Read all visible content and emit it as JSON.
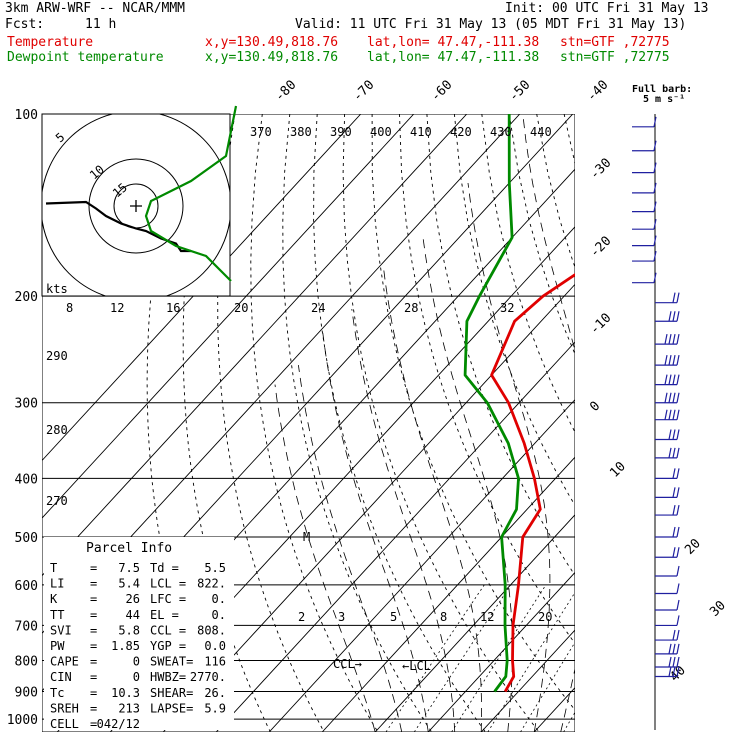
{
  "header": {
    "title_left": "3km ARW-WRF -- NCAR/MMM",
    "init": "Init: 00 UTC Fri 31 May 13",
    "fcst_label": "Fcst:",
    "fcst_value": "11 h",
    "valid": "Valid: 11 UTC Fri 31 May 13 (05 MDT Fri 31 May 13)",
    "series": [
      {
        "name": "Temperature",
        "coords": "x,y=130.49,818.76",
        "latlon": "lat,lon= 47.47,-111.38",
        "stn": "stn=GTF ,72775",
        "color": "#e00000"
      },
      {
        "name": "Dewpoint temperature",
        "coords": "x,y=130.49,818.76",
        "latlon": "lat,lon= 47.47,-111.38",
        "stn": "stn=GTF ,72775",
        "color": "#008a00"
      }
    ]
  },
  "barb_legend": {
    "line1": "Full barb:",
    "line2": "5 m s⁻¹"
  },
  "hodograph": {
    "unit": "kts",
    "rings": [
      "5",
      "10",
      "15"
    ]
  },
  "parcel_info": {
    "title": "Parcel Info",
    "rows": [
      [
        "T",
        "=",
        "7.5",
        "Td =",
        "5.5"
      ],
      [
        "LI",
        "=",
        "5.4",
        "LCL =",
        "822."
      ],
      [
        "K",
        "=",
        "26",
        "LFC =",
        "0."
      ],
      [
        "TT",
        "=",
        "44",
        "EL =",
        "0."
      ],
      [
        "SVI",
        "=",
        "5.8",
        "CCL =",
        "808."
      ],
      [
        "PW",
        "=",
        "1.85",
        "YGP =",
        "0.0"
      ],
      [
        "CAPE",
        "=",
        "0",
        "SWEAT=",
        "116"
      ],
      [
        "CIN",
        "=",
        "0",
        "HWBZ=",
        "2770."
      ],
      [
        "Tc",
        "=",
        "10.3",
        "SHEAR=",
        "26."
      ],
      [
        "SREH",
        "=",
        "213",
        "LAPSE=",
        "5.9"
      ],
      [
        "CELL",
        "=",
        "042/12",
        "",
        ""
      ]
    ]
  },
  "annotations": {
    "ccl": "CCL→",
    "lcl": "←LCL",
    "m": "M"
  },
  "colors": {
    "temperature": "#e00000",
    "dewpoint": "#008a00",
    "barbs": "#2020a0",
    "adiabats": "#000000"
  },
  "chart_data": {
    "type": "skew-t",
    "title": "3km ARW-WRF -- NCAR/MMM",
    "pressure_levels": [
      "100",
      "200",
      "300",
      "400",
      "500",
      "600",
      "700",
      "800",
      "900",
      "1000"
    ],
    "temperature_ticks": [
      "-80",
      "-70",
      "-60",
      "-50",
      "-40",
      "-30",
      "-20",
      "-10",
      "0",
      "10",
      "20",
      "30",
      "40"
    ],
    "theta_e_labels_top": [
      "370",
      "380",
      "390",
      "400",
      "410",
      "420",
      "430",
      "440"
    ],
    "mixing_ratio_labels": [
      "2",
      "3",
      "5",
      "8",
      "12",
      "20"
    ],
    "theta_labels_left": [
      "290",
      "280",
      "270"
    ],
    "theta_e_labels_mid": [
      "8",
      "12",
      "16",
      "20",
      "24",
      "28",
      "32"
    ],
    "series": [
      {
        "name": "Temperature",
        "unit": "C",
        "points": [
          {
            "p": 900,
            "t": 7.5
          },
          {
            "p": 850,
            "t": 6.5
          },
          {
            "p": 800,
            "t": 3.5
          },
          {
            "p": 700,
            "t": -2.5
          },
          {
            "p": 600,
            "t": -8.5
          },
          {
            "p": 500,
            "t": -16
          },
          {
            "p": 450,
            "t": -17.5
          },
          {
            "p": 400,
            "t": -24
          },
          {
            "p": 350,
            "t": -32
          },
          {
            "p": 300,
            "t": -42
          },
          {
            "p": 270,
            "t": -50
          },
          {
            "p": 220,
            "t": -55
          },
          {
            "p": 200,
            "t": -54
          },
          {
            "p": 180,
            "t": -51
          },
          {
            "p": 150,
            "t": -50
          },
          {
            "p": 130,
            "t": -53
          },
          {
            "p": 100,
            "t": -61
          }
        ]
      },
      {
        "name": "Dewpoint temperature",
        "unit": "C",
        "points": [
          {
            "p": 900,
            "t": 5.5
          },
          {
            "p": 850,
            "t": 5
          },
          {
            "p": 800,
            "t": 2.5
          },
          {
            "p": 700,
            "t": -4
          },
          {
            "p": 600,
            "t": -11
          },
          {
            "p": 500,
            "t": -20
          },
          {
            "p": 450,
            "t": -22
          },
          {
            "p": 400,
            "t": -27
          },
          {
            "p": 350,
            "t": -35
          },
          {
            "p": 300,
            "t": -46
          },
          {
            "p": 270,
            "t": -55
          },
          {
            "p": 220,
            "t": -64
          },
          {
            "p": 200,
            "t": -66
          },
          {
            "p": 160,
            "t": -70
          },
          {
            "p": 130,
            "t": -80
          },
          {
            "p": 100,
            "t": -92
          }
        ]
      }
    ],
    "wind_barbs": [
      {
        "p": 105,
        "speed": 5
      },
      {
        "p": 115,
        "speed": 5
      },
      {
        "p": 125,
        "speed": 5
      },
      {
        "p": 135,
        "speed": 5
      },
      {
        "p": 145,
        "speed": 5
      },
      {
        "p": 155,
        "speed": 5
      },
      {
        "p": 165,
        "speed": 5
      },
      {
        "p": 175,
        "speed": 5
      },
      {
        "p": 190,
        "speed": 5
      },
      {
        "p": 205,
        "speed": 10
      },
      {
        "p": 220,
        "speed": 15
      },
      {
        "p": 240,
        "speed": 20
      },
      {
        "p": 260,
        "speed": 20
      },
      {
        "p": 280,
        "speed": 20
      },
      {
        "p": 300,
        "speed": 20
      },
      {
        "p": 320,
        "speed": 20
      },
      {
        "p": 345,
        "speed": 15
      },
      {
        "p": 370,
        "speed": 15
      },
      {
        "p": 400,
        "speed": 10
      },
      {
        "p": 430,
        "speed": 10
      },
      {
        "p": 460,
        "speed": 10
      },
      {
        "p": 500,
        "speed": 10
      },
      {
        "p": 540,
        "speed": 10
      },
      {
        "p": 580,
        "speed": 5
      },
      {
        "p": 620,
        "speed": 5
      },
      {
        "p": 660,
        "speed": 5
      },
      {
        "p": 700,
        "speed": 5
      },
      {
        "p": 740,
        "speed": 10
      },
      {
        "p": 780,
        "speed": 15
      },
      {
        "p": 820,
        "speed": 15
      },
      {
        "p": 850,
        "speed": 15
      }
    ],
    "hodograph_trace": [
      [
        -18,
        0.5
      ],
      [
        -10,
        0.8
      ],
      [
        -8,
        -0.5
      ],
      [
        -6,
        -2
      ],
      [
        -3,
        -3.5
      ],
      [
        0,
        -4.5
      ],
      [
        2,
        -5
      ],
      [
        5,
        -6.5
      ],
      [
        8,
        -7.5
      ],
      [
        9,
        -9
      ],
      [
        11,
        -9
      ]
    ],
    "hodograph_dewpoint_trace": [
      [
        20,
        20
      ],
      [
        18,
        10
      ],
      [
        11,
        5
      ],
      [
        3,
        1
      ],
      [
        2,
        -2
      ],
      [
        3,
        -5
      ],
      [
        8,
        -8
      ],
      [
        14,
        -10
      ],
      [
        19,
        -15
      ]
    ]
  }
}
